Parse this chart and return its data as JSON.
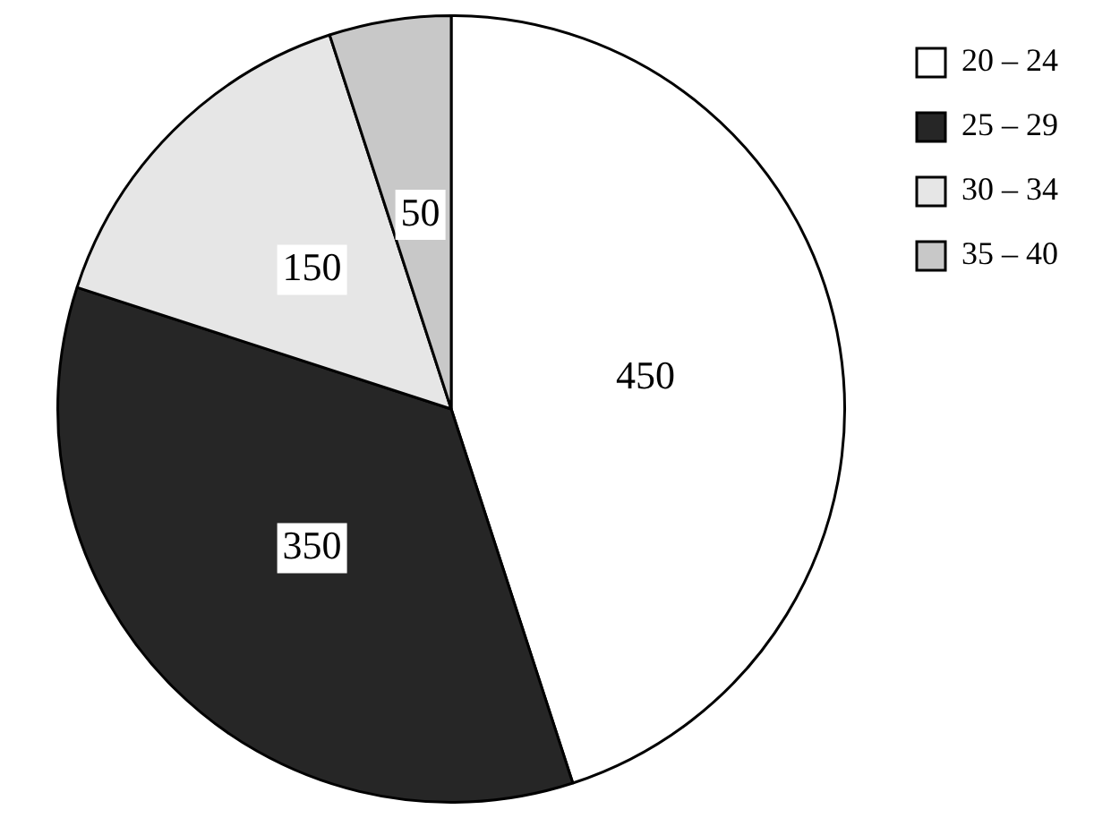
{
  "chart_data": {
    "type": "pie",
    "categories": [
      "20 – 24",
      "25 – 29",
      "30 – 34",
      "35 – 40"
    ],
    "values": [
      450,
      350,
      150,
      50
    ],
    "colors": [
      "#ffffff",
      "#262626",
      "#e6e6e6",
      "#c8c8c8"
    ],
    "data_labels": true,
    "legend": "top right"
  }
}
